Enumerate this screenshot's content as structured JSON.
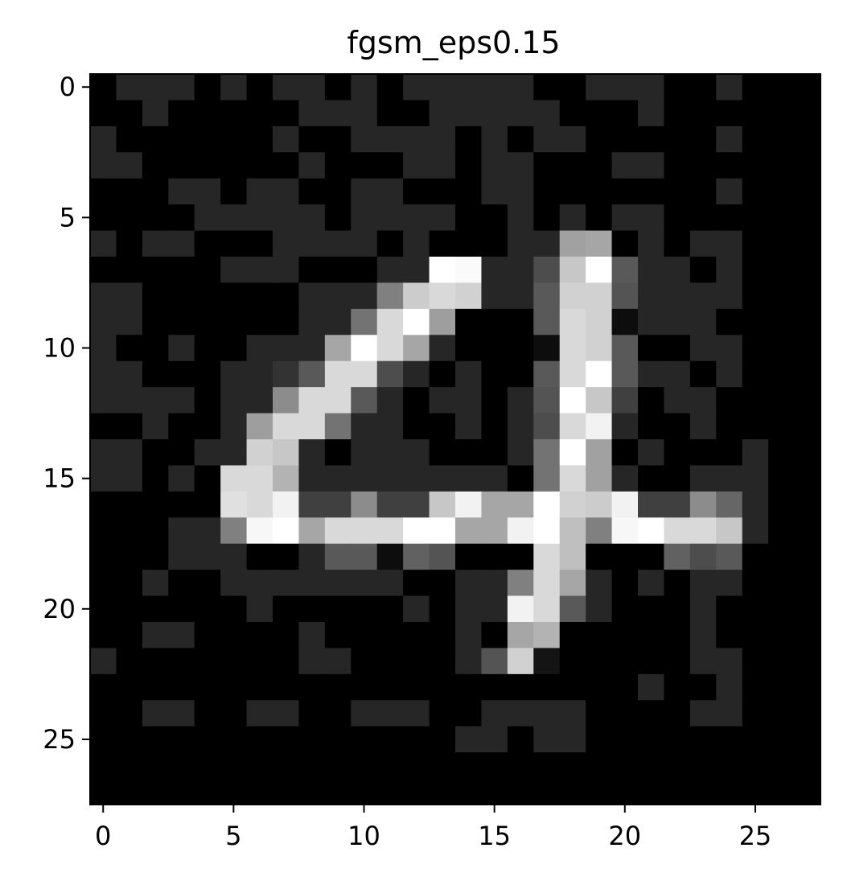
{
  "chart_data": {
    "type": "heatmap",
    "title": "fgsm_eps0.15",
    "xlabel": "",
    "ylabel": "",
    "colormap": "gray",
    "value_range": [
      0,
      1
    ],
    "rows": 28,
    "cols": 28,
    "x_ticks": [
      0,
      5,
      10,
      15,
      20,
      25
    ],
    "y_ticks": [
      0,
      5,
      10,
      15,
      20,
      25
    ],
    "x_tick_labels": [
      "0",
      "5",
      "10",
      "15",
      "20",
      "25"
    ],
    "y_tick_labels": [
      "0",
      "5",
      "10",
      "15",
      "20",
      "25"
    ],
    "xlim": [
      -0.5,
      27.5
    ],
    "ylim": [
      27.5,
      -0.5
    ],
    "grid": false,
    "values": [
      [
        0,
        0.15,
        0.15,
        0.15,
        0,
        0.15,
        0,
        0.15,
        0.15,
        0,
        0.15,
        0,
        0.15,
        0.15,
        0.15,
        0.15,
        0.15,
        0,
        0,
        0.15,
        0.15,
        0.15,
        0,
        0,
        0.15,
        0,
        0,
        0
      ],
      [
        0,
        0,
        0.15,
        0,
        0,
        0,
        0,
        0,
        0.15,
        0.15,
        0.15,
        0,
        0,
        0.15,
        0.15,
        0.15,
        0.15,
        0.15,
        0,
        0,
        0,
        0.15,
        0,
        0,
        0,
        0,
        0,
        0
      ],
      [
        0.15,
        0,
        0,
        0,
        0,
        0,
        0,
        0.15,
        0,
        0,
        0.15,
        0.15,
        0.15,
        0.15,
        0,
        0.15,
        0,
        0.15,
        0.15,
        0,
        0,
        0,
        0,
        0,
        0.15,
        0,
        0,
        0
      ],
      [
        0.15,
        0.15,
        0,
        0,
        0,
        0,
        0,
        0,
        0.15,
        0,
        0,
        0,
        0.15,
        0.15,
        0,
        0.15,
        0.15,
        0,
        0,
        0,
        0.15,
        0.15,
        0,
        0,
        0,
        0,
        0,
        0
      ],
      [
        0,
        0,
        0,
        0.15,
        0.15,
        0,
        0.15,
        0.15,
        0,
        0,
        0.15,
        0.15,
        0,
        0,
        0,
        0.15,
        0.15,
        0,
        0,
        0,
        0,
        0,
        0,
        0,
        0.15,
        0,
        0,
        0
      ],
      [
        0,
        0,
        0,
        0,
        0.15,
        0.15,
        0.15,
        0.15,
        0.15,
        0,
        0.15,
        0.15,
        0.15,
        0.15,
        0,
        0,
        0.15,
        0,
        0.15,
        0,
        0.15,
        0.15,
        0,
        0,
        0,
        0,
        0,
        0
      ],
      [
        0.15,
        0,
        0.15,
        0.15,
        0,
        0,
        0,
        0.15,
        0.15,
        0.15,
        0.15,
        0,
        0.15,
        0,
        0,
        0,
        0.15,
        0.15,
        0.63,
        0.65,
        0,
        0.15,
        0,
        0.15,
        0.15,
        0,
        0,
        0
      ],
      [
        0,
        0,
        0,
        0,
        0,
        0.15,
        0.15,
        0.15,
        0,
        0,
        0,
        0.15,
        0.15,
        1,
        0.98,
        0.15,
        0.15,
        0.3,
        0.78,
        1,
        0.35,
        0.15,
        0.15,
        0,
        0.15,
        0,
        0,
        0
      ],
      [
        0.15,
        0.15,
        0,
        0,
        0,
        0,
        0,
        0,
        0.15,
        0.15,
        0.15,
        0.5,
        0.8,
        0.85,
        0.82,
        0.15,
        0.15,
        0.35,
        0.82,
        0.82,
        0.33,
        0.15,
        0.15,
        0.15,
        0.15,
        0,
        0,
        0
      ],
      [
        0.15,
        0.15,
        0,
        0,
        0,
        0,
        0,
        0,
        0.15,
        0.15,
        0.45,
        0.85,
        1,
        0.62,
        0,
        0,
        0,
        0.35,
        0.85,
        0.82,
        0.05,
        0.15,
        0.15,
        0.15,
        0,
        0,
        0,
        0
      ],
      [
        0.15,
        0,
        0,
        0.15,
        0,
        0,
        0.15,
        0.15,
        0.15,
        0.65,
        1,
        0.85,
        0.65,
        0.15,
        0,
        0,
        0,
        0.05,
        0.85,
        0.82,
        0.35,
        0,
        0,
        0.15,
        0.15,
        0,
        0,
        0
      ],
      [
        0.15,
        0.15,
        0,
        0,
        0,
        0.15,
        0.15,
        0.2,
        0.35,
        0.85,
        0.85,
        0.3,
        0.15,
        0,
        0.15,
        0,
        0,
        0.35,
        0.85,
        1,
        0.35,
        0.15,
        0.15,
        0,
        0.15,
        0,
        0,
        0
      ],
      [
        0.15,
        0.15,
        0.15,
        0.15,
        0,
        0.15,
        0.15,
        0.55,
        0.85,
        0.85,
        0.35,
        0.15,
        0,
        0.15,
        0.15,
        0,
        0.15,
        0.33,
        1,
        0.78,
        0.25,
        0,
        0.15,
        0.15,
        0,
        0,
        0,
        0
      ],
      [
        0,
        0,
        0.15,
        0,
        0,
        0.15,
        0.62,
        0.85,
        0.85,
        0.45,
        0.15,
        0.15,
        0,
        0,
        0.15,
        0,
        0.15,
        0.3,
        0.85,
        0.95,
        0.15,
        0,
        0,
        0.15,
        0,
        0,
        0,
        0
      ],
      [
        0.15,
        0.15,
        0,
        0,
        0.15,
        0.15,
        0.82,
        0.78,
        0.15,
        0,
        0.15,
        0.15,
        0.15,
        0,
        0,
        0,
        0.15,
        0.45,
        1,
        0.63,
        0,
        0.15,
        0,
        0,
        0,
        0.15,
        0,
        0
      ],
      [
        0.15,
        0.15,
        0,
        0.15,
        0,
        0.85,
        0.85,
        0.7,
        0.15,
        0.15,
        0.15,
        0.15,
        0.15,
        0.15,
        0.15,
        0.15,
        0,
        0.45,
        0.85,
        0.63,
        0.15,
        0,
        0,
        0.15,
        0.15,
        0.15,
        0,
        0
      ],
      [
        0,
        0,
        0,
        0,
        0,
        0.88,
        0.85,
        0.95,
        0.25,
        0.25,
        0.55,
        0.25,
        0.25,
        0.78,
        0.95,
        0.65,
        0.65,
        1,
        0.82,
        0.8,
        0.95,
        0.25,
        0.25,
        0.55,
        0.4,
        0.15,
        0,
        0
      ],
      [
        0,
        0,
        0,
        0.15,
        0.15,
        0.5,
        0.97,
        1,
        0.65,
        0.85,
        0.85,
        0.85,
        1,
        1,
        0.65,
        0.65,
        0.95,
        1,
        0.75,
        0.5,
        0.97,
        1,
        0.85,
        0.85,
        0.78,
        0.15,
        0,
        0
      ],
      [
        0,
        0,
        0,
        0.15,
        0.15,
        0.15,
        0,
        0,
        0.15,
        0.35,
        0.35,
        0.05,
        0.38,
        0.33,
        0,
        0,
        0,
        0.85,
        0.75,
        0,
        0,
        0,
        0.38,
        0.3,
        0.35,
        0,
        0,
        0
      ],
      [
        0,
        0,
        0.15,
        0,
        0,
        0.15,
        0.15,
        0.15,
        0.15,
        0.15,
        0.15,
        0.15,
        0,
        0,
        0.15,
        0.15,
        0.5,
        0.85,
        0.65,
        0.15,
        0,
        0.15,
        0,
        0.15,
        0.15,
        0,
        0,
        0
      ],
      [
        0,
        0,
        0,
        0,
        0,
        0,
        0.15,
        0,
        0,
        0,
        0,
        0,
        0.15,
        0,
        0.15,
        0.15,
        0.95,
        0.85,
        0.35,
        0.15,
        0,
        0,
        0,
        0.15,
        0,
        0,
        0,
        0
      ],
      [
        0,
        0,
        0.15,
        0.15,
        0,
        0,
        0,
        0,
        0.15,
        0,
        0,
        0,
        0,
        0,
        0.15,
        0,
        0.65,
        0.7,
        0,
        0,
        0,
        0,
        0,
        0.15,
        0,
        0,
        0,
        0
      ],
      [
        0.15,
        0,
        0,
        0,
        0,
        0,
        0,
        0,
        0.15,
        0.15,
        0,
        0,
        0,
        0,
        0.15,
        0.33,
        0.82,
        0.08,
        0,
        0,
        0,
        0,
        0,
        0.15,
        0.15,
        0,
        0,
        0
      ],
      [
        0,
        0,
        0,
        0,
        0,
        0,
        0,
        0,
        0,
        0,
        0,
        0,
        0,
        0,
        0,
        0,
        0,
        0,
        0,
        0,
        0,
        0.15,
        0,
        0,
        0.15,
        0,
        0,
        0
      ],
      [
        0,
        0,
        0.15,
        0.15,
        0,
        0,
        0.15,
        0.15,
        0,
        0,
        0.15,
        0.15,
        0.15,
        0,
        0,
        0.15,
        0.15,
        0.15,
        0.15,
        0,
        0,
        0,
        0,
        0.15,
        0.15,
        0,
        0,
        0
      ],
      [
        0,
        0,
        0,
        0,
        0,
        0,
        0,
        0,
        0,
        0,
        0,
        0,
        0,
        0,
        0.15,
        0.15,
        0,
        0.15,
        0.15,
        0,
        0,
        0,
        0,
        0,
        0,
        0,
        0,
        0
      ],
      [
        0,
        0,
        0,
        0,
        0,
        0,
        0,
        0,
        0,
        0,
        0,
        0,
        0,
        0,
        0,
        0,
        0,
        0,
        0,
        0,
        0,
        0,
        0,
        0,
        0,
        0,
        0,
        0
      ],
      [
        0,
        0,
        0,
        0,
        0,
        0,
        0,
        0,
        0,
        0,
        0,
        0,
        0,
        0,
        0,
        0,
        0,
        0,
        0,
        0,
        0,
        0,
        0,
        0,
        0,
        0,
        0,
        0
      ]
    ]
  }
}
